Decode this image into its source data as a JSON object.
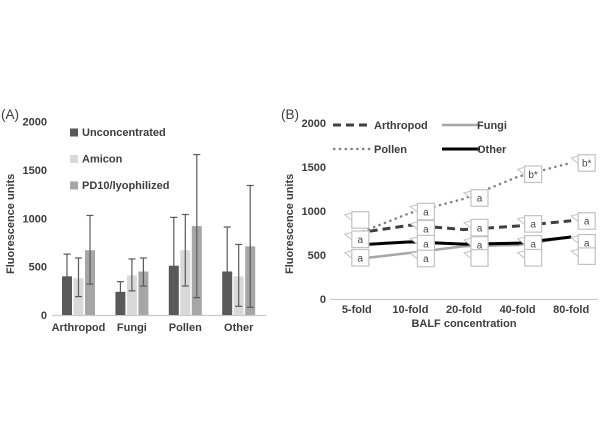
{
  "panels": [
    {
      "label": "(A)"
    },
    {
      "label": "(B)"
    }
  ],
  "colors": {
    "axis_line": "#c9c9c9",
    "error_bar": "#5a5a5a",
    "callout_border": "#c2c2c2",
    "callout_fill": "#ffffff",
    "text": "#3d3d3d"
  },
  "chart_data": [
    {
      "id": "A",
      "type": "bar",
      "panel": "(A)",
      "ylabel": "Fluorescence units",
      "xlabel": "",
      "ylim": [
        0,
        2000
      ],
      "yticks": [
        0,
        500,
        1000,
        1500,
        2000
      ],
      "grid": false,
      "legend_position": "upper-left-inside",
      "categories": [
        "Arthropod",
        "Fungi",
        "Pollen",
        "Other"
      ],
      "series": [
        {
          "name": "Unconcentrated",
          "color": "#595959",
          "values": [
            400,
            240,
            510,
            450
          ],
          "error_high": [
            630,
            345,
            1010,
            910
          ],
          "error_low": [
            170,
            130,
            40,
            60
          ]
        },
        {
          "name": "Amicon",
          "color": "#d9d9d9",
          "values": [
            380,
            410,
            670,
            400
          ],
          "error_high": [
            590,
            580,
            1040,
            730
          ],
          "error_low": [
            190,
            250,
            300,
            90
          ]
        },
        {
          "name": "PD10/lyophilized",
          "color": "#a6a6a6",
          "values": [
            670,
            450,
            920,
            710
          ],
          "error_high": [
            1030,
            590,
            1660,
            1340
          ],
          "error_low": [
            320,
            300,
            180,
            80
          ]
        }
      ]
    },
    {
      "id": "B",
      "type": "line",
      "panel": "(B)",
      "ylabel": "Fluorescence units",
      "xlabel": "BALF concentration",
      "ylim": [
        0,
        2000
      ],
      "yticks": [
        0,
        500,
        1000,
        1500,
        2000
      ],
      "grid": false,
      "legend_position": "top-inside-two-columns",
      "categories": [
        "5-fold",
        "10-fold",
        "20-fold",
        "40-fold",
        "80-fold"
      ],
      "series": [
        {
          "name": "Arthropod",
          "style": "dashed",
          "color": "#404040",
          "width": 3,
          "values": [
            750,
            840,
            790,
            830,
            890
          ]
        },
        {
          "name": "Fungi",
          "style": "solid",
          "color": "#a6a6a6",
          "width": 2.5,
          "values": [
            455,
            525,
            600,
            615,
            705
          ]
        },
        {
          "name": "Pollen",
          "style": "dotted",
          "color": "#7f7f7f",
          "width": 2.2,
          "values": [
            740,
            980,
            1140,
            1390,
            1550
          ]
        },
        {
          "name": "Other",
          "style": "solid",
          "color": "#000000",
          "width": 3,
          "values": [
            615,
            650,
            625,
            635,
            705
          ]
        }
      ],
      "annotations": [
        {
          "x": 0,
          "value": 900,
          "text": ""
        },
        {
          "x": 0,
          "value": 680,
          "text": "a"
        },
        {
          "x": 0,
          "value": 470,
          "text": "a"
        },
        {
          "x": 1,
          "value": 995,
          "text": "a"
        },
        {
          "x": 1,
          "value": 800,
          "text": "a"
        },
        {
          "x": 1,
          "value": 630,
          "text": "a"
        },
        {
          "x": 1,
          "value": 462,
          "text": "a"
        },
        {
          "x": 2,
          "value": 1150,
          "text": "a"
        },
        {
          "x": 2,
          "value": 812,
          "text": "a"
        },
        {
          "x": 2,
          "value": 615,
          "text": "a"
        },
        {
          "x": 2,
          "value": 468,
          "text": ""
        },
        {
          "x": 3,
          "value": 1420,
          "text": "b*"
        },
        {
          "x": 3,
          "value": 855,
          "text": "a"
        },
        {
          "x": 3,
          "value": 628,
          "text": "a"
        },
        {
          "x": 3,
          "value": 470,
          "text": ""
        },
        {
          "x": 4,
          "value": 1548,
          "text": "b*"
        },
        {
          "x": 4,
          "value": 888,
          "text": "a"
        },
        {
          "x": 4,
          "value": 640,
          "text": "a"
        },
        {
          "x": 4,
          "value": 488,
          "text": ""
        }
      ]
    }
  ]
}
